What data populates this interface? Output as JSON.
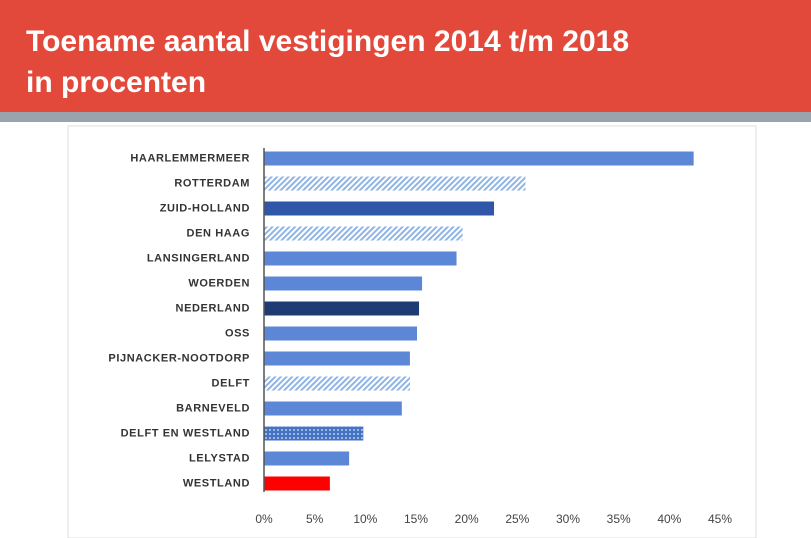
{
  "chart_data": {
    "type": "bar",
    "orientation": "horizontal",
    "title": [
      "Toename aantal vestigingen 2014 t/m 2018",
      "in procenten"
    ],
    "categories": [
      "HAARLEMMERMEER",
      "ROTTERDAM",
      "ZUID-HOLLAND",
      "DEN HAAG",
      "LANSINGERLAND",
      "WOERDEN",
      "NEDERLAND",
      "OSS",
      "PIJNACKER-NOOTDORP",
      "DELFT",
      "BARNEVELD",
      "DELFT EN WESTLAND",
      "LELYSTAD",
      "WESTLAND"
    ],
    "values": [
      42.4,
      25.8,
      22.7,
      19.6,
      19.0,
      15.6,
      15.3,
      15.1,
      14.4,
      14.4,
      13.6,
      9.8,
      8.4,
      6.5
    ],
    "colors": [
      "#5b87d6",
      "#8fb4e6",
      "#2f56a8",
      "#8fb4e6",
      "#5b87d6",
      "#5b87d6",
      "#1f3b73",
      "#5b87d6",
      "#5b87d6",
      "#8fb4e6",
      "#5b87d6",
      "#4472c4",
      "#5b87d6",
      "#ff0000"
    ],
    "patterns": [
      "solid",
      "hatch",
      "solid",
      "hatch",
      "solid",
      "solid",
      "solid",
      "solid",
      "solid",
      "hatch",
      "solid",
      "dots",
      "solid",
      "solid"
    ],
    "xlim": [
      0,
      45
    ],
    "xticks": [
      {
        "value": 0,
        "label": "0%"
      },
      {
        "value": 5,
        "label": "5%"
      },
      {
        "value": 10,
        "label": "10%"
      },
      {
        "value": 15,
        "label": "15%"
      },
      {
        "value": 20,
        "label": "20%"
      },
      {
        "value": 25,
        "label": "25%"
      },
      {
        "value": 30,
        "label": "30%"
      },
      {
        "value": 35,
        "label": "35%"
      },
      {
        "value": 40,
        "label": "40%"
      },
      {
        "value": 45,
        "label": "45%"
      }
    ],
    "grid": false
  }
}
